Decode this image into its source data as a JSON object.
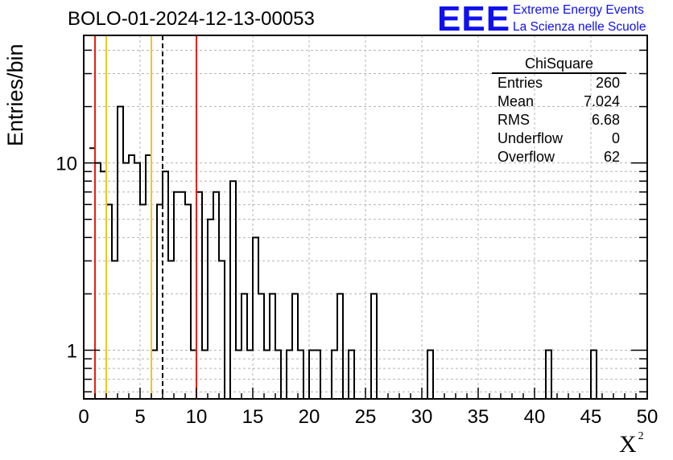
{
  "title": "BOLO-01-2024-12-13-00053",
  "logo": {
    "mark": "EEE",
    "line1": "Extreme Energy Events",
    "line2": "La Scienza nelle Scuole",
    "color": "#1010ee"
  },
  "stats_box": {
    "title": "ChiSquare",
    "rows": [
      {
        "label": "Entries",
        "value": "260"
      },
      {
        "label": "Mean",
        "value": "7.024"
      },
      {
        "label": "RMS",
        "value": "6.68"
      },
      {
        "label": "Underflow",
        "value": "0"
      },
      {
        "label": "Overflow",
        "value": "62"
      }
    ]
  },
  "chart_data": {
    "type": "histogram",
    "xlabel": "X",
    "xlabel_superscript": "2",
    "ylabel": "Entries/bin",
    "xlim": [
      0,
      50
    ],
    "ylim": [
      0.55,
      48
    ],
    "yscale": "log",
    "grid": true,
    "x_ticks": [
      "0",
      "5",
      "10",
      "15",
      "20",
      "25",
      "30",
      "35",
      "40",
      "45",
      "50"
    ],
    "y_ticks": [
      {
        "value": 1,
        "label": "1"
      },
      {
        "value": 10,
        "label": "10"
      }
    ],
    "bin_width": 0.5,
    "bin_start": 0.5,
    "counts": [
      12,
      10,
      9,
      6,
      3,
      20,
      10,
      11,
      10,
      6,
      11,
      1,
      6,
      9,
      3,
      7,
      7,
      6,
      1,
      7,
      1,
      5,
      7,
      3,
      0,
      8,
      1,
      2,
      1,
      4,
      2,
      1,
      2,
      1,
      0,
      1,
      2,
      1,
      0,
      1,
      1,
      0,
      0,
      1,
      2,
      0,
      1,
      0,
      0,
      0,
      2,
      0,
      0,
      0,
      0,
      0,
      0,
      0,
      0,
      0,
      1,
      0,
      0,
      0,
      0,
      0,
      0,
      0,
      0,
      0,
      0,
      0,
      0,
      0,
      0,
      0,
      0,
      0,
      0,
      0,
      0,
      1,
      0,
      0,
      0,
      0,
      0,
      0,
      0,
      1,
      0
    ],
    "vlines": [
      {
        "x": 1,
        "color": "#e8200c",
        "style": "solid"
      },
      {
        "x": 2,
        "color": "#f2c818",
        "style": "solid"
      },
      {
        "x": 6,
        "color": "#f2c818",
        "style": "solid"
      },
      {
        "x": 7,
        "color": "#000000",
        "style": "dashed"
      },
      {
        "x": 10,
        "color": "#e8200c",
        "style": "solid"
      }
    ]
  }
}
